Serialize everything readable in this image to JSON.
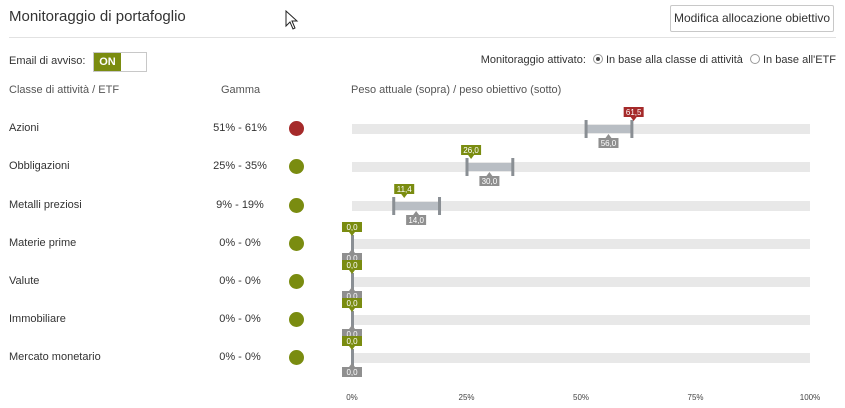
{
  "header": {
    "title": "Monitoraggio di portafoglio",
    "modify_button": "Modifica allocazione obiettivo"
  },
  "email": {
    "label": "Email di avviso:",
    "toggle": "ON"
  },
  "monitoring": {
    "label": "Monitoraggio attivato:",
    "options": [
      {
        "label": "In base alla classe di attività",
        "checked": true
      },
      {
        "label": "In base all'ETF",
        "checked": false
      }
    ]
  },
  "columns": {
    "class": "Classe di attività / ETF",
    "range": "Gamma",
    "weight": "Peso attuale (sopra) / peso obiettivo (sotto)"
  },
  "colors": {
    "red": "#a52a2a",
    "green": "#7a8c10",
    "gray": "#999999",
    "accent": "#7a8c10"
  },
  "chart_data": {
    "type": "range-bullet",
    "x_ticks": [
      "0%",
      "25%",
      "50%",
      "75%",
      "100%"
    ],
    "xlim": [
      0,
      100
    ],
    "rows": [
      {
        "name": "Azioni",
        "range": "51% - 61%",
        "range_min": 51,
        "range_max": 61,
        "status": "red",
        "current": 61.5,
        "current_label": "61,5",
        "target": 56.0,
        "target_label": "56,0"
      },
      {
        "name": "Obbligazioni",
        "range": "25% - 35%",
        "range_min": 25,
        "range_max": 35,
        "status": "green",
        "current": 26.0,
        "current_label": "26,0",
        "target": 30.0,
        "target_label": "30,0"
      },
      {
        "name": "Metalli preziosi",
        "range": "9% - 19%",
        "range_min": 9,
        "range_max": 19,
        "status": "green",
        "current": 11.4,
        "current_label": "11,4",
        "target": 14.0,
        "target_label": "14,0"
      },
      {
        "name": "Materie prime",
        "range": "0% - 0%",
        "range_min": 0,
        "range_max": 0,
        "status": "green",
        "current": 0,
        "current_label": "0,0",
        "target": 0,
        "target_label": "0,0"
      },
      {
        "name": "Valute",
        "range": "0% - 0%",
        "range_min": 0,
        "range_max": 0,
        "status": "green",
        "current": 0,
        "current_label": "0,0",
        "target": 0,
        "target_label": "0,0"
      },
      {
        "name": "Immobiliare",
        "range": "0% - 0%",
        "range_min": 0,
        "range_max": 0,
        "status": "green",
        "current": 0,
        "current_label": "0,0",
        "target": 0,
        "target_label": "0,0"
      },
      {
        "name": "Mercato monetario",
        "range": "0% - 0%",
        "range_min": 0,
        "range_max": 0,
        "status": "green",
        "current": 0,
        "current_label": "0,0",
        "target": 0,
        "target_label": "0,0"
      }
    ]
  }
}
